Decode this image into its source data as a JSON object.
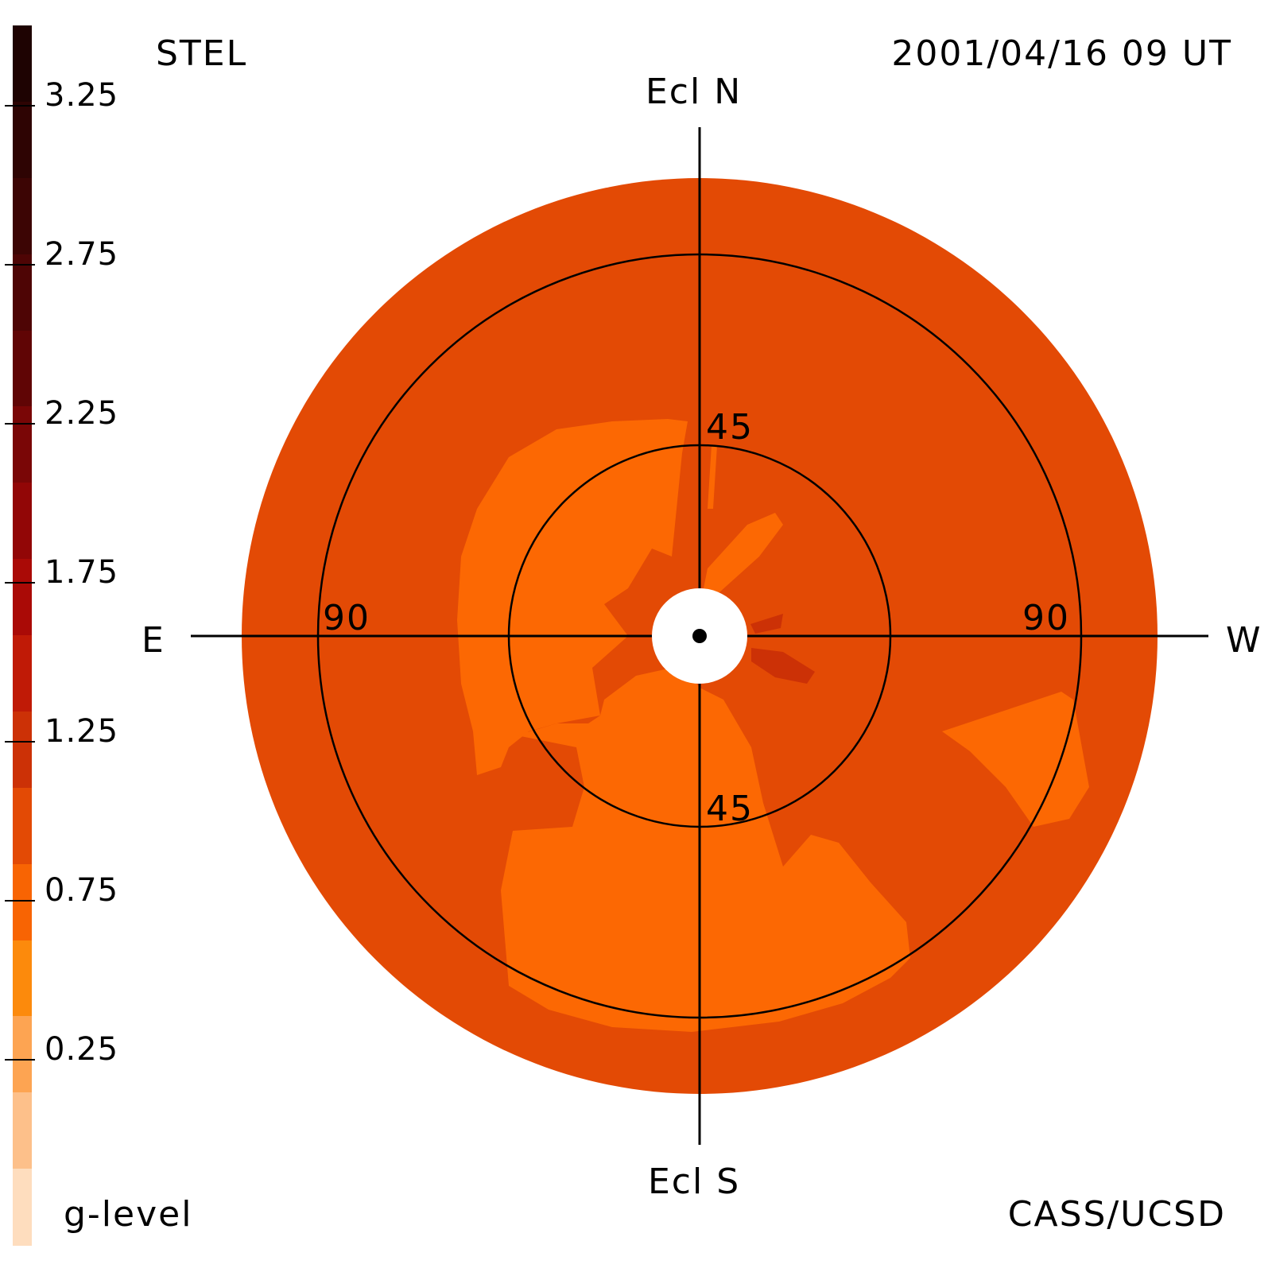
{
  "header": {
    "instrument": "STEL",
    "datetime": "2001/04/16 09 UT"
  },
  "footer": {
    "colorbar_label": "g-level",
    "credit": "CASS/UCSD"
  },
  "map": {
    "labels": {
      "north": "Ecl N",
      "south": "Ecl S",
      "east": "E",
      "west": "W",
      "ring_inner_top": "45",
      "ring_inner_bottom": "45",
      "ring_outer_left": "90",
      "ring_outer_right": "90"
    },
    "background_color": "#E34A05",
    "feature_color": "#FC6803",
    "enhancement_color": "#CC3106",
    "center_color": "#ffffff"
  },
  "colorbar": {
    "tick_labels": [
      "3.25",
      "2.75",
      "2.25",
      "1.75",
      "1.25",
      "0.75",
      "0.25"
    ],
    "colors": [
      "#1E0302",
      "#2E0403",
      "#3C0504",
      "#4E0505",
      "#600505",
      "#7A0606",
      "#920606",
      "#AA0A06",
      "#C01A06",
      "#CC3106",
      "#E34A05",
      "#F86403",
      "#FC8A0C",
      "#FDA452",
      "#FDC08A",
      "#FEDDBE"
    ]
  }
}
